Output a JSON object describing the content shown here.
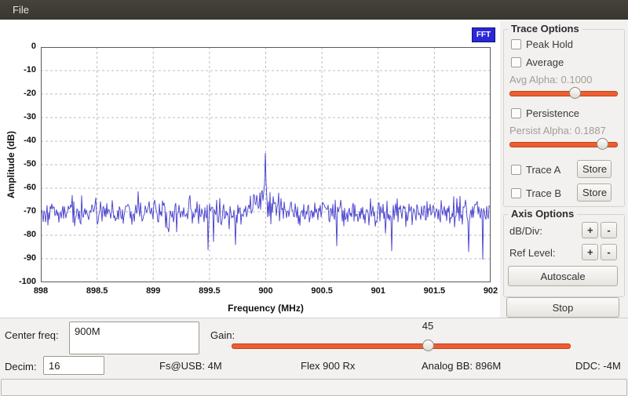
{
  "titlebar": {
    "menu_file": "File"
  },
  "plot": {
    "badge": "FFT"
  },
  "chart_data": {
    "type": "line",
    "title": "",
    "xlabel": "Frequency (MHz)",
    "ylabel": "Amplitude (dB)",
    "xlim": [
      898,
      902
    ],
    "ylim": [
      -100,
      0
    ],
    "x_ticks": [
      "898",
      "898.5",
      "899",
      "899.5",
      "900",
      "900.5",
      "901",
      "901.5",
      "902"
    ],
    "y_ticks": [
      "0",
      "-10",
      "-20",
      "-30",
      "-40",
      "-50",
      "-60",
      "-70",
      "-80",
      "-90",
      "-100"
    ],
    "grid": true,
    "legend": "none",
    "series": [
      {
        "name": "fft-trace",
        "color": "#443dcb",
        "noise_floor_db": -70,
        "noise_spread_db": 6,
        "peak_freq_mhz": 900,
        "peak_level_db": -45,
        "hump_width_mhz": 0.12,
        "hump_gain_db": 8
      }
    ],
    "seed": 1337,
    "points": 573
  },
  "trace_options": {
    "title": "Trace Options",
    "peak_hold_label": "Peak Hold",
    "average_label": "Average",
    "avg_alpha_label": "Avg Alpha: 0.1000",
    "avg_alpha_percent": 61,
    "persistence_label": "Persistence",
    "persist_alpha_label": "Persist Alpha: 0.1887",
    "persist_alpha_percent": 86,
    "trace_a_label": "Trace A",
    "trace_b_label": "Trace B",
    "store_label": "Store"
  },
  "axis_options": {
    "title": "Axis Options",
    "db_div_label": "dB/Div:",
    "ref_level_label": "Ref Level:",
    "plus_label": "+",
    "minus_label": "-",
    "autoscale_label": "Autoscale",
    "stop_label": "Stop"
  },
  "controls": {
    "center_freq_label": "Center freq:",
    "center_freq_value": "900M",
    "gain_label": "Gain:",
    "gain_value": "45",
    "gain_percent": 58,
    "decim_label": "Decim:",
    "decim_value": "16",
    "fs_usb": "Fs@USB: 4M",
    "daughterboard": "Flex 900 Rx",
    "analog_bb": "Analog BB: 896M",
    "ddc": "DDC: -4M"
  },
  "colors": {
    "accent_orange": "#ee5d31",
    "trace_blue": "#443dcb",
    "badge_blue": "#2b28d6",
    "grid_gray": "#bdbdbd"
  }
}
